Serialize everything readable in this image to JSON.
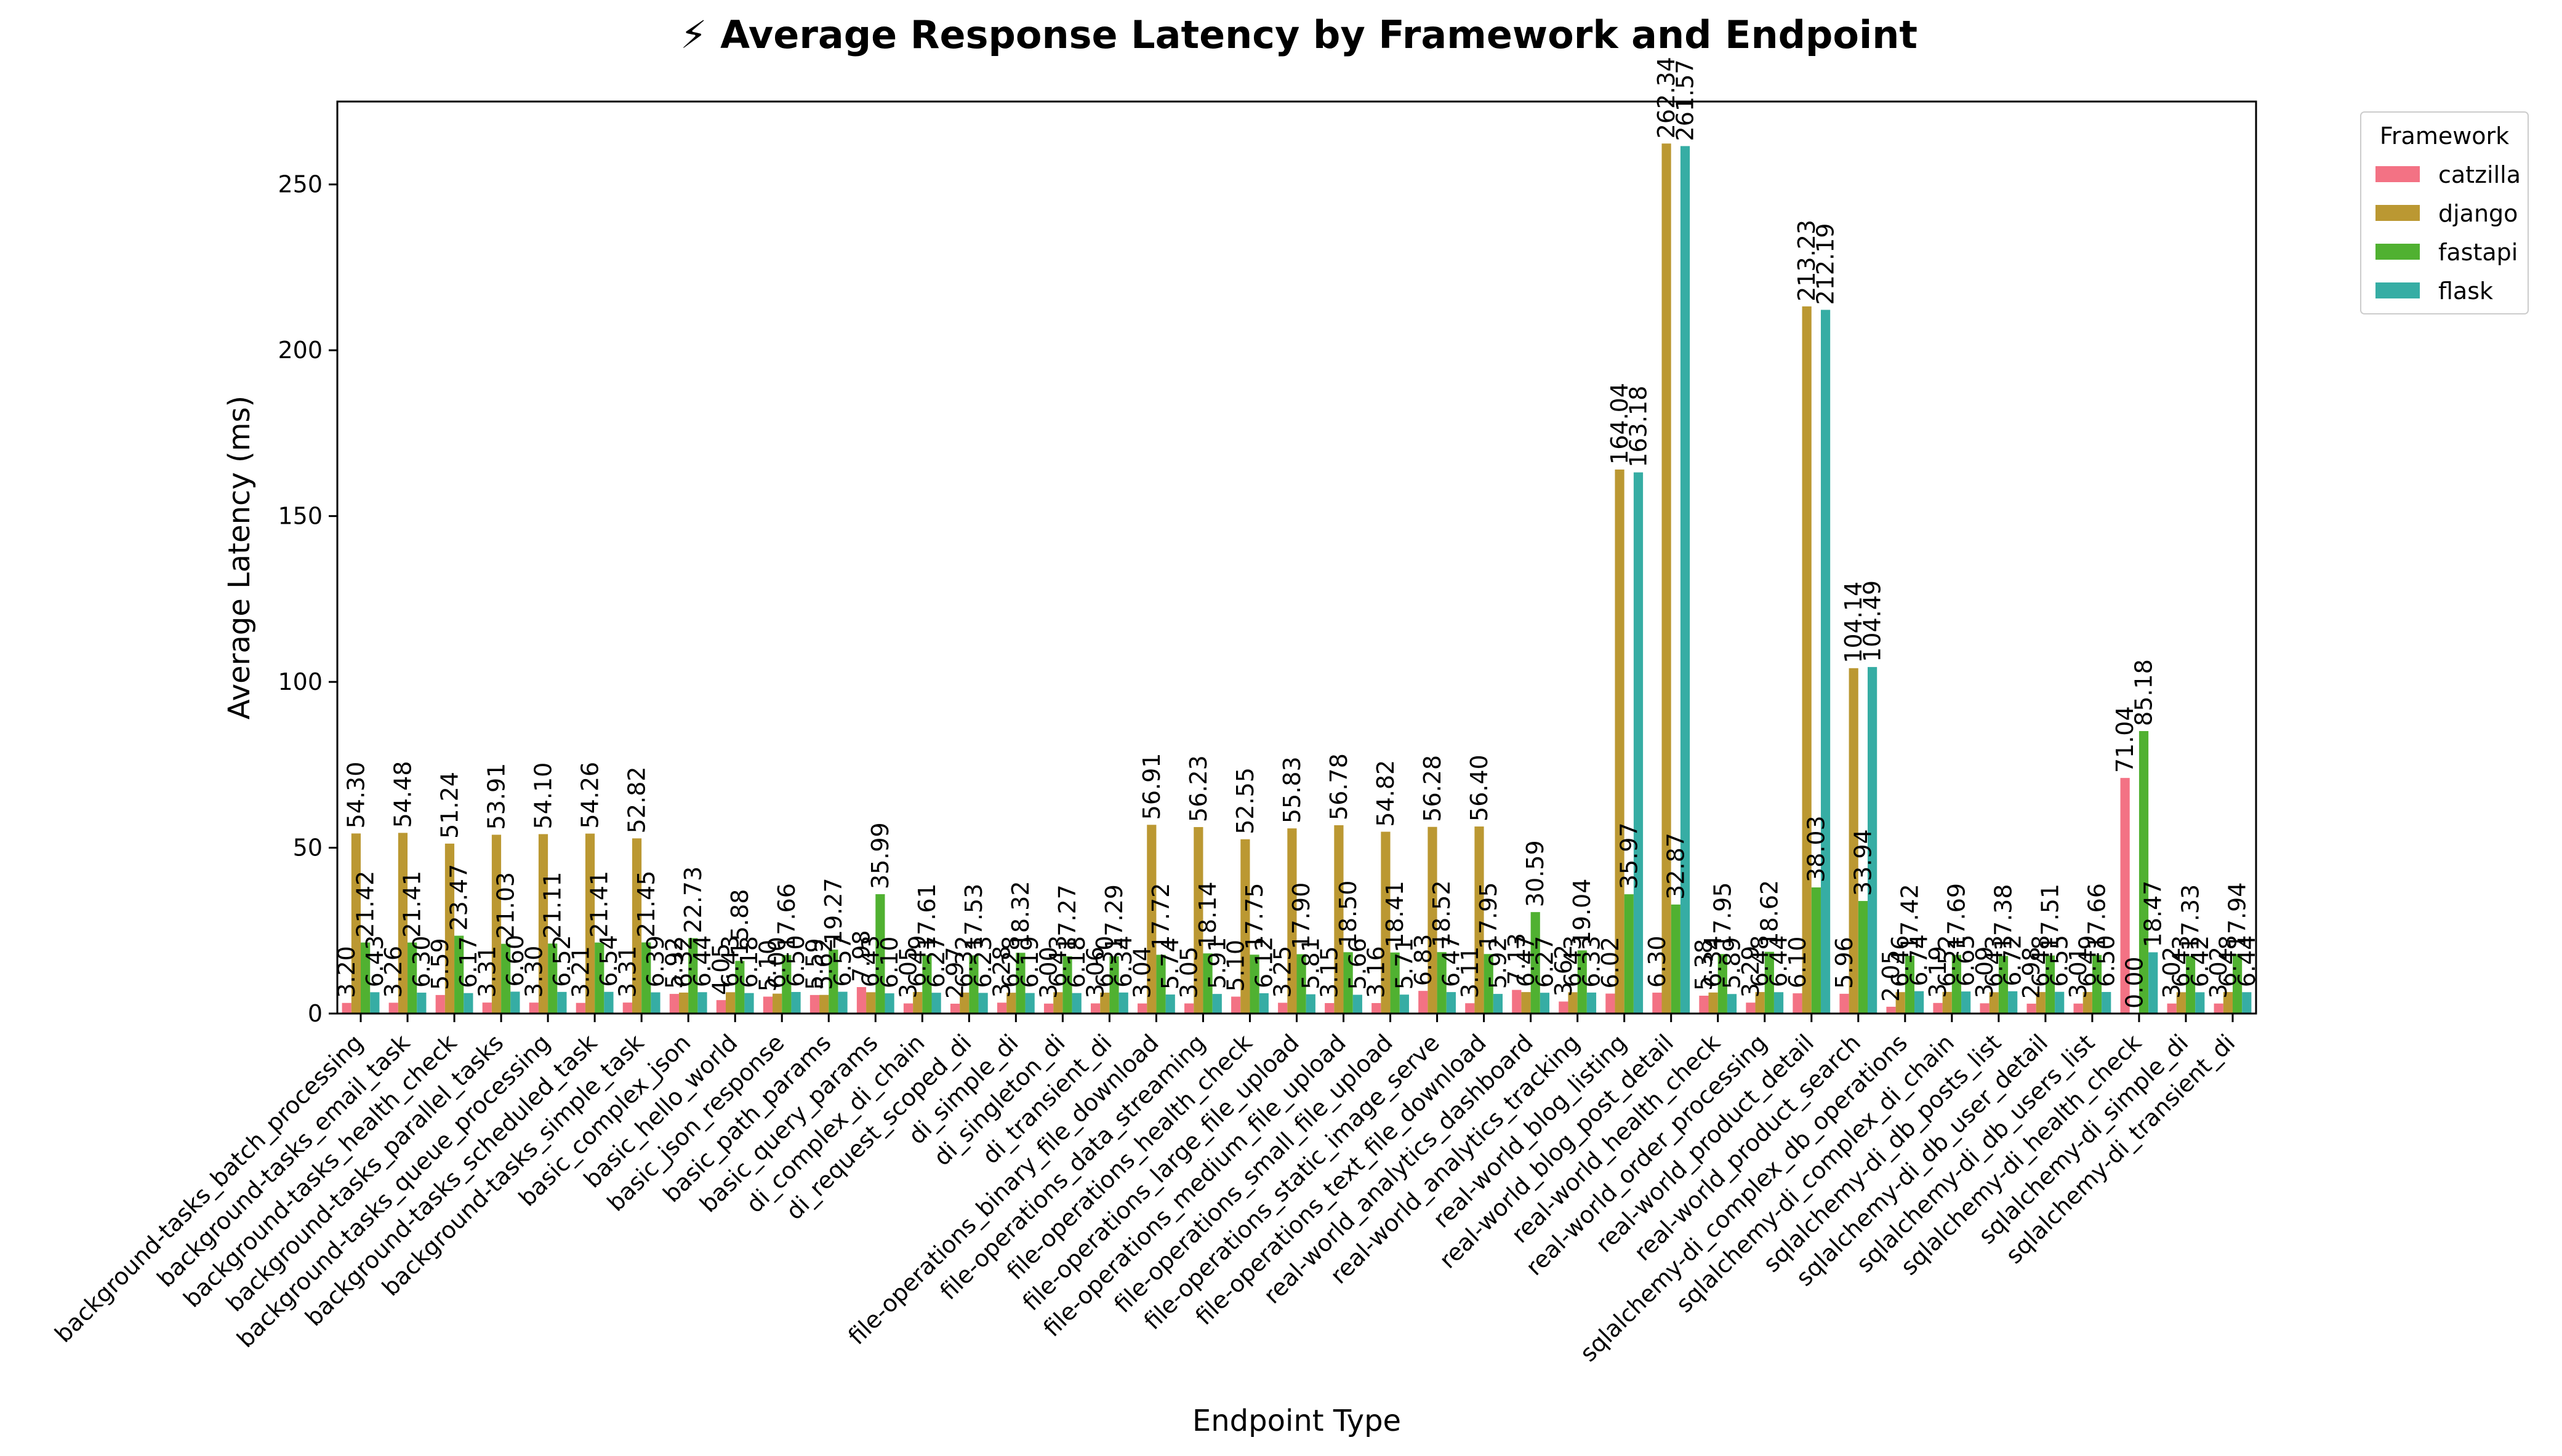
{
  "chart_data": {
    "type": "bar",
    "title": "⚡ Average Response Latency by Framework and Endpoint",
    "xlabel": "Endpoint Type",
    "ylabel": "Average Latency (ms)",
    "ylim": [
      0,
      275
    ],
    "yticks": [
      0,
      50,
      100,
      150,
      200,
      250
    ],
    "legend": {
      "title": "Framework",
      "placement": "outside-top-right"
    },
    "categories": [
      "background-tasks_batch_processing",
      "background-tasks_email_task",
      "background-tasks_health_check",
      "background-tasks_parallel_tasks",
      "background-tasks_queue_processing",
      "background-tasks_scheduled_task",
      "background-tasks_simple_task",
      "basic_complex_json",
      "basic_hello_world",
      "basic_json_response",
      "basic_path_params",
      "basic_query_params",
      "di_complex_di_chain",
      "di_request_scoped_di",
      "di_simple_di",
      "di_singleton_di",
      "di_transient_di",
      "file-operations_binary_file_download",
      "file-operations_data_streaming",
      "file-operations_health_check",
      "file-operations_large_file_upload",
      "file-operations_medium_file_upload",
      "file-operations_small_file_upload",
      "file-operations_static_image_serve",
      "file-operations_text_file_download",
      "real-world_analytics_dashboard",
      "real-world_analytics_tracking",
      "real-world_blog_listing",
      "real-world_blog_post_detail",
      "real-world_health_check",
      "real-world_order_processing",
      "real-world_product_detail",
      "real-world_product_search",
      "sqlalchemy-di_complex_db_operations",
      "sqlalchemy-di_complex_di_chain",
      "sqlalchemy-di_db_posts_list",
      "sqlalchemy-di_db_user_detail",
      "sqlalchemy-di_db_users_list",
      "sqlalchemy-di_health_check",
      "sqlalchemy-di_simple_di",
      "sqlalchemy-di_transient_di"
    ],
    "series": [
      {
        "name": "catzilla",
        "color": "#f37284",
        "values": [
          3.2,
          3.26,
          5.59,
          3.31,
          3.3,
          3.21,
          3.31,
          5.92,
          4.05,
          5.1,
          5.59,
          7.98,
          3.05,
          2.97,
          3.28,
          3.0,
          3.06,
          3.04,
          3.05,
          5.1,
          3.25,
          3.15,
          3.16,
          6.83,
          3.11,
          7.13,
          3.62,
          6.02,
          6.3,
          5.38,
          3.29,
          6.1,
          5.96,
          2.05,
          3.19,
          3.09,
          2.98,
          3.01,
          71.04,
          3.02,
          3.02
        ]
      },
      {
        "name": "django",
        "color": "#bb9832",
        "values": [
          54.3,
          54.48,
          51.24,
          53.91,
          54.1,
          54.26,
          52.82,
          6.32,
          6.43,
          6.0,
          5.62,
          6.43,
          6.49,
          6.32,
          6.28,
          6.43,
          6.3,
          56.91,
          56.23,
          52.55,
          55.83,
          56.78,
          54.82,
          56.28,
          56.4,
          6.47,
          6.43,
          164.04,
          262.34,
          6.34,
          6.48,
          213.23,
          104.14,
          6.46,
          6.52,
          6.43,
          6.48,
          6.49,
          0.0,
          6.43,
          6.48
        ]
      },
      {
        "name": "fastapi",
        "color": "#50b131",
        "values": [
          21.42,
          21.41,
          23.47,
          21.03,
          21.11,
          21.41,
          21.45,
          22.73,
          15.88,
          17.66,
          19.27,
          35.99,
          17.61,
          17.53,
          18.32,
          17.27,
          17.29,
          17.72,
          18.14,
          17.75,
          17.9,
          18.5,
          18.41,
          18.52,
          17.95,
          30.59,
          19.04,
          35.97,
          32.87,
          17.95,
          18.62,
          38.03,
          33.94,
          17.42,
          17.69,
          17.38,
          17.51,
          17.66,
          85.18,
          17.33,
          17.94
        ]
      },
      {
        "name": "flask",
        "color": "#36ada4",
        "values": [
          6.43,
          6.3,
          6.17,
          6.6,
          6.52,
          6.54,
          6.39,
          6.44,
          6.18,
          6.5,
          6.57,
          6.1,
          6.27,
          6.23,
          6.19,
          6.18,
          6.34,
          5.74,
          5.91,
          6.12,
          5.81,
          5.66,
          5.71,
          6.47,
          5.92,
          6.27,
          6.33,
          163.18,
          261.57,
          5.89,
          6.44,
          212.19,
          104.49,
          6.74,
          6.65,
          6.72,
          6.55,
          6.5,
          18.47,
          6.42,
          6.44
        ]
      }
    ]
  }
}
